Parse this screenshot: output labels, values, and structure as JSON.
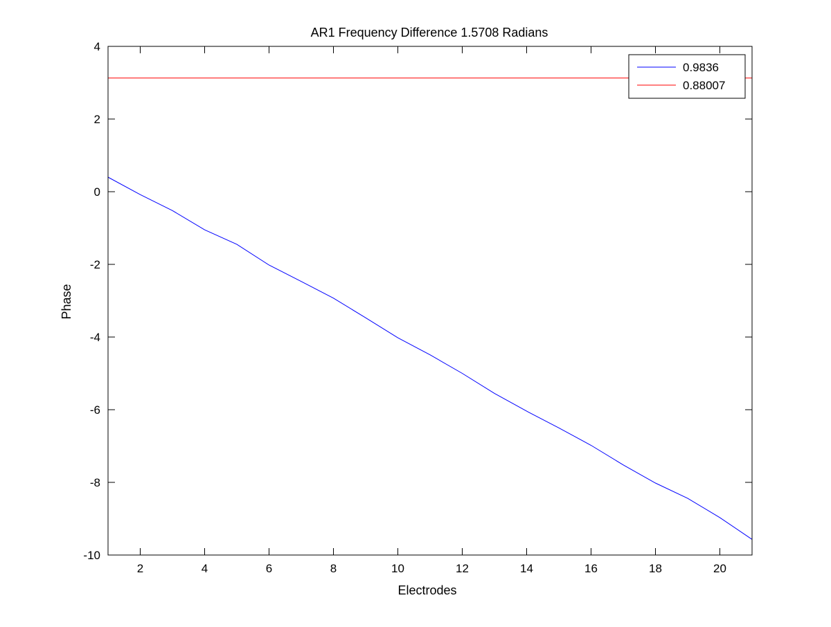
{
  "chart_data": {
    "type": "line",
    "title": "AR1 Frequency Difference 1.5708 Radians",
    "xlabel": "Electrodes",
    "ylabel": "Phase",
    "xlim": [
      1,
      21
    ],
    "ylim": [
      -10,
      4
    ],
    "xticks": [
      2,
      4,
      6,
      8,
      10,
      12,
      14,
      16,
      18,
      20
    ],
    "yticks": [
      -10,
      -8,
      -6,
      -4,
      -2,
      0,
      2,
      4
    ],
    "grid": false,
    "legend_position": "top-right",
    "series": [
      {
        "name": "0.9836",
        "color": "#0000ff",
        "x": [
          1,
          2,
          3,
          4,
          5,
          6,
          7,
          8,
          9,
          10,
          11,
          12,
          13,
          14,
          15,
          16,
          17,
          18,
          19,
          20,
          21
        ],
        "y": [
          0.4,
          -0.08,
          -0.52,
          -1.05,
          -1.45,
          -2.02,
          -2.47,
          -2.93,
          -3.47,
          -4.02,
          -4.49,
          -5.0,
          -5.55,
          -6.04,
          -6.5,
          -6.98,
          -7.52,
          -8.02,
          -8.44,
          -8.97,
          -9.57
        ]
      },
      {
        "name": "0.88007",
        "color": "#ff0000",
        "x": [
          1,
          21
        ],
        "y": [
          3.13,
          3.13
        ]
      }
    ]
  }
}
